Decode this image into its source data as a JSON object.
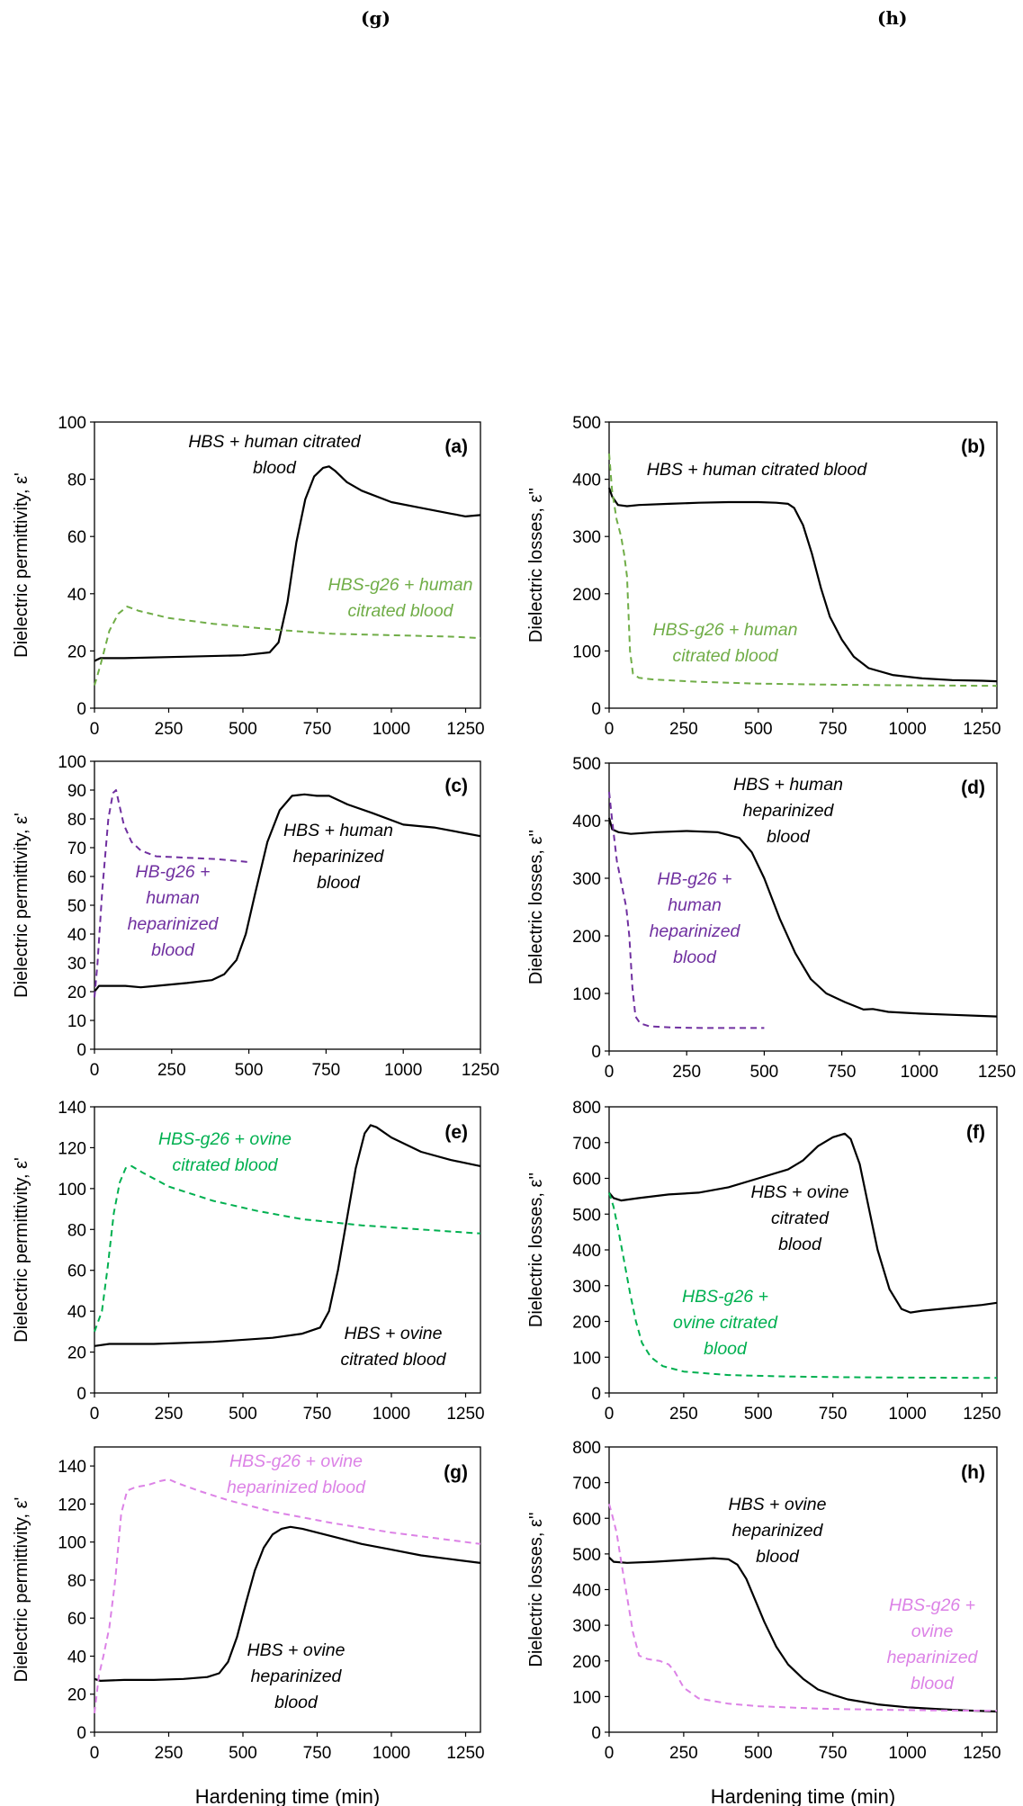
{
  "header": {
    "left_label": "(g)",
    "right_label": "(h)"
  },
  "chart_data": [
    {
      "type": "line",
      "panel": "(a)",
      "grid": false,
      "legend": "none",
      "ylabel": "Dielectric permittivity, ε'",
      "xlabel": "",
      "xlim": [
        0,
        1300
      ],
      "ylim": [
        0,
        100
      ],
      "xticks": [
        0,
        250,
        500,
        750,
        1000,
        1250
      ],
      "yticks": [
        0,
        20,
        40,
        60,
        80,
        100
      ],
      "series": [
        {
          "name": "HBS + human citrated blood",
          "color": "#000000",
          "dashed": false,
          "x": [
            0,
            20,
            100,
            300,
            500,
            590,
            620,
            650,
            680,
            710,
            740,
            770,
            790,
            810,
            850,
            900,
            1000,
            1100,
            1200,
            1250,
            1300
          ],
          "y": [
            16.5,
            17.5,
            17.5,
            18,
            18.5,
            19.5,
            23,
            37,
            58,
            73,
            81,
            84,
            84.5,
            83,
            79,
            76,
            72,
            70,
            68,
            67,
            67.5
          ]
        },
        {
          "name": "HBS-g26 + human citrated blood",
          "color": "#70ad47",
          "dashed": true,
          "x": [
            0,
            20,
            50,
            80,
            110,
            150,
            250,
            400,
            600,
            800,
            1000,
            1200,
            1300
          ],
          "y": [
            8,
            15,
            27,
            33,
            35.5,
            34,
            31.5,
            29.5,
            27.5,
            26,
            25.5,
            25,
            24.5
          ]
        }
      ],
      "annotations": [
        {
          "text": [
            "HBS + human citrated",
            "blood"
          ],
          "color": "#000000"
        },
        {
          "text": [
            "HBS-g26 + human",
            "citrated blood"
          ],
          "color": "#70ad47"
        }
      ]
    },
    {
      "type": "line",
      "panel": "(b)",
      "grid": false,
      "legend": "none",
      "ylabel": "Dielectric losses, ε''",
      "xlabel": "",
      "xlim": [
        0,
        1300
      ],
      "ylim": [
        0,
        500
      ],
      "xticks": [
        0,
        250,
        500,
        750,
        1000,
        1250
      ],
      "yticks": [
        0,
        100,
        200,
        300,
        400,
        500
      ],
      "series": [
        {
          "name": "HBS + human citrated blood",
          "color": "#000000",
          "dashed": false,
          "x": [
            0,
            10,
            30,
            60,
            100,
            200,
            300,
            400,
            500,
            560,
            600,
            620,
            650,
            680,
            710,
            740,
            780,
            820,
            870,
            950,
            1050,
            1150,
            1250,
            1300
          ],
          "y": [
            385,
            370,
            355,
            353,
            355,
            357,
            359,
            360,
            360,
            359,
            357,
            350,
            320,
            270,
            210,
            160,
            120,
            90,
            70,
            58,
            52,
            49,
            48,
            47
          ]
        },
        {
          "name": "HBS-g26 + human citrated blood",
          "color": "#70ad47",
          "dashed": true,
          "x": [
            0,
            10,
            25,
            40,
            50,
            60,
            70,
            80,
            100,
            150,
            300,
            500,
            750,
            1000,
            1300
          ],
          "y": [
            445,
            380,
            330,
            300,
            270,
            230,
            100,
            60,
            53,
            50,
            46,
            43,
            41,
            40,
            39
          ]
        }
      ],
      "annotations": [
        {
          "text": [
            "HBS + human citrated blood"
          ],
          "color": "#000000"
        },
        {
          "text": [
            "HBS-g26 + human",
            "citrated blood"
          ],
          "color": "#70ad47"
        }
      ]
    },
    {
      "type": "line",
      "panel": "(c)",
      "grid": false,
      "legend": "none",
      "ylabel": "Dielectric permittivity, ε'",
      "xlabel": "",
      "xlim": [
        0,
        1250
      ],
      "ylim": [
        0,
        100
      ],
      "xticks": [
        0,
        250,
        500,
        750,
        1000,
        1250
      ],
      "yticks": [
        0,
        10,
        20,
        30,
        40,
        50,
        60,
        70,
        80,
        90,
        100
      ],
      "series": [
        {
          "name": "HBS + human heparinized blood",
          "color": "#000000",
          "dashed": false,
          "x": [
            0,
            15,
            50,
            100,
            150,
            200,
            300,
            380,
            420,
            460,
            490,
            520,
            560,
            600,
            640,
            680,
            720,
            760,
            820,
            900,
            1000,
            1100,
            1200,
            1250
          ],
          "y": [
            20,
            22,
            22,
            22,
            21.5,
            22,
            23,
            24,
            26,
            31,
            40,
            54,
            72,
            83,
            88,
            88.5,
            88,
            88,
            85,
            82,
            78,
            77,
            75,
            74
          ]
        },
        {
          "name": "HB-g26 + human heparinized blood",
          "color": "#7030a0",
          "dashed": true,
          "x": [
            0,
            10,
            25,
            45,
            60,
            70,
            80,
            95,
            120,
            150,
            200,
            300,
            400,
            500
          ],
          "y": [
            18,
            30,
            55,
            80,
            89,
            90,
            85,
            78,
            72,
            69,
            67,
            66.5,
            66,
            65
          ]
        }
      ],
      "annotations": [
        {
          "text": [
            "HBS + human",
            "heparinized",
            "blood"
          ],
          "color": "#000000"
        },
        {
          "text": [
            "HB-g26 +",
            "human",
            "heparinized",
            "blood"
          ],
          "color": "#7030a0"
        }
      ]
    },
    {
      "type": "line",
      "panel": "(d)",
      "grid": false,
      "legend": "none",
      "ylabel": "Dielectric losses, ε''",
      "xlabel": "",
      "xlim": [
        0,
        1250
      ],
      "ylim": [
        0,
        500
      ],
      "xticks": [
        0,
        250,
        500,
        750,
        1000,
        1250
      ],
      "yticks": [
        0,
        100,
        200,
        300,
        400,
        500
      ],
      "series": [
        {
          "name": "HBS + human heparinized blood",
          "color": "#000000",
          "dashed": false,
          "x": [
            0,
            10,
            30,
            70,
            150,
            250,
            350,
            420,
            460,
            500,
            550,
            600,
            650,
            700,
            760,
            820,
            850,
            900,
            1000,
            1100,
            1200,
            1250
          ],
          "y": [
            405,
            385,
            380,
            377,
            380,
            382,
            380,
            370,
            345,
            300,
            230,
            170,
            125,
            100,
            85,
            72,
            73,
            68,
            65,
            63,
            61,
            60
          ]
        },
        {
          "name": "HB-g26 + human heparinized blood",
          "color": "#7030a0",
          "dashed": true,
          "x": [
            0,
            10,
            25,
            40,
            55,
            65,
            75,
            85,
            100,
            130,
            200,
            300,
            500
          ],
          "y": [
            450,
            400,
            330,
            290,
            250,
            200,
            110,
            60,
            48,
            43,
            41,
            40,
            40
          ]
        }
      ],
      "annotations": [
        {
          "text": [
            "HBS + human",
            "heparinized",
            "blood"
          ],
          "color": "#000000"
        },
        {
          "text": [
            "HB-g26 +",
            "human",
            "heparinized",
            "blood"
          ],
          "color": "#7030a0"
        }
      ]
    },
    {
      "type": "line",
      "panel": "(e)",
      "grid": false,
      "legend": "none",
      "ylabel": "Dielectric permittivity, ε'",
      "xlabel": "",
      "xlim": [
        0,
        1300
      ],
      "ylim": [
        0,
        140
      ],
      "xticks": [
        0,
        250,
        500,
        750,
        1000,
        1250
      ],
      "yticks": [
        0,
        20,
        40,
        60,
        80,
        100,
        120,
        140
      ],
      "series": [
        {
          "name": "HBS + ovine citrated blood",
          "color": "#000000",
          "dashed": false,
          "x": [
            0,
            50,
            200,
            400,
            600,
            700,
            760,
            790,
            820,
            850,
            880,
            910,
            930,
            950,
            1000,
            1100,
            1200,
            1300
          ],
          "y": [
            23,
            24,
            24,
            25,
            27,
            29,
            32,
            40,
            60,
            85,
            110,
            127,
            131,
            130,
            125,
            118,
            114,
            111
          ]
        },
        {
          "name": "HBS-g26 + ovine citrated blood",
          "color": "#00b050",
          "dashed": true,
          "x": [
            0,
            25,
            45,
            65,
            85,
            105,
            125,
            160,
            250,
            400,
            550,
            700,
            900,
            1100,
            1300
          ],
          "y": [
            30,
            40,
            62,
            88,
            103,
            110,
            111,
            108,
            101,
            94,
            89,
            85,
            82,
            80,
            78
          ]
        }
      ],
      "annotations": [
        {
          "text": [
            "HBS-g26 + ovine",
            "citrated blood"
          ],
          "color": "#00b050"
        },
        {
          "text": [
            "HBS + ovine",
            "citrated blood"
          ],
          "color": "#000000"
        }
      ]
    },
    {
      "type": "line",
      "panel": "(f)",
      "grid": false,
      "legend": "none",
      "ylabel": "Dielectric losses, ε''",
      "xlabel": "",
      "xlim": [
        0,
        1300
      ],
      "ylim": [
        0,
        800
      ],
      "xticks": [
        0,
        250,
        500,
        750,
        1000,
        1250
      ],
      "yticks": [
        0,
        100,
        200,
        300,
        400,
        500,
        600,
        700,
        800
      ],
      "series": [
        {
          "name": "HBS + ovine citrated blood",
          "color": "#000000",
          "dashed": false,
          "x": [
            0,
            15,
            40,
            100,
            200,
            300,
            400,
            500,
            600,
            650,
            700,
            750,
            790,
            810,
            840,
            870,
            900,
            940,
            980,
            1010,
            1050,
            1150,
            1250,
            1300
          ],
          "y": [
            560,
            545,
            538,
            545,
            555,
            560,
            575,
            600,
            625,
            650,
            690,
            715,
            725,
            710,
            640,
            520,
            400,
            290,
            235,
            225,
            230,
            238,
            246,
            252
          ]
        },
        {
          "name": "HBS-g26 + ovine citrated blood",
          "color": "#00b050",
          "dashed": true,
          "x": [
            0,
            15,
            30,
            50,
            70,
            90,
            110,
            140,
            180,
            250,
            400,
            600,
            800,
            1000,
            1300
          ],
          "y": [
            560,
            520,
            460,
            370,
            280,
            200,
            140,
            100,
            75,
            60,
            50,
            46,
            44,
            43,
            42
          ]
        }
      ],
      "annotations": [
        {
          "text": [
            "HBS + ovine",
            "citrated",
            "blood"
          ],
          "color": "#000000"
        },
        {
          "text": [
            "HBS-g26 +",
            "ovine citrated",
            "blood"
          ],
          "color": "#00b050"
        }
      ]
    },
    {
      "type": "line",
      "panel": "(g)",
      "grid": false,
      "legend": "none",
      "ylabel": "Dielectric permittivity, ε'",
      "xlabel": "Hardening time (min)",
      "xlim": [
        0,
        1300
      ],
      "ylim": [
        0,
        150
      ],
      "xticks": [
        0,
        250,
        500,
        750,
        1000,
        1250
      ],
      "yticks": [
        0,
        20,
        40,
        60,
        80,
        100,
        120,
        140
      ],
      "series": [
        {
          "name": "HBS + ovine heparinized blood",
          "color": "#000000",
          "dashed": false,
          "x": [
            0,
            20,
            100,
            200,
            300,
            380,
            420,
            450,
            480,
            510,
            540,
            570,
            600,
            630,
            660,
            700,
            800,
            900,
            1000,
            1100,
            1200,
            1300
          ],
          "y": [
            28,
            27,
            27.5,
            27.5,
            28,
            29,
            31,
            37,
            50,
            68,
            85,
            97,
            104,
            107,
            108,
            107,
            103,
            99,
            96,
            93,
            91,
            89
          ]
        },
        {
          "name": "HBS-g26 + ovine heparinized blood",
          "color": "#dc82e6",
          "dashed": true,
          "x": [
            0,
            15,
            30,
            50,
            70,
            90,
            110,
            140,
            180,
            220,
            250,
            280,
            350,
            450,
            600,
            800,
            1000,
            1150,
            1300
          ],
          "y": [
            10,
            30,
            40,
            55,
            80,
            115,
            127,
            129,
            130,
            132,
            133,
            131,
            127,
            122,
            116,
            110,
            105,
            102,
            99
          ]
        }
      ],
      "annotations": [
        {
          "text": [
            "HBS-g26 + ovine",
            "heparinized blood"
          ],
          "color": "#dc82e6"
        },
        {
          "text": [
            "HBS + ovine",
            "heparinized",
            "blood"
          ],
          "color": "#000000"
        }
      ]
    },
    {
      "type": "line",
      "panel": "(h)",
      "grid": false,
      "legend": "none",
      "ylabel": "Dielectric losses, ε''",
      "xlabel": "Hardening time (min)",
      "xlim": [
        0,
        1300
      ],
      "ylim": [
        0,
        800
      ],
      "xticks": [
        0,
        250,
        500,
        750,
        1000,
        1250
      ],
      "yticks": [
        0,
        100,
        200,
        300,
        400,
        500,
        600,
        700,
        800
      ],
      "series": [
        {
          "name": "HBS + ovine heparinized blood",
          "color": "#000000",
          "dashed": false,
          "x": [
            0,
            15,
            60,
            150,
            250,
            350,
            400,
            430,
            460,
            490,
            520,
            560,
            600,
            650,
            700,
            750,
            800,
            900,
            1000,
            1100,
            1200,
            1300
          ],
          "y": [
            490,
            478,
            475,
            478,
            483,
            488,
            485,
            470,
            430,
            370,
            310,
            240,
            190,
            150,
            120,
            105,
            92,
            78,
            70,
            65,
            61,
            58
          ]
        },
        {
          "name": "HBS-g26 + ovine heparinized blood",
          "color": "#dc82e6",
          "dashed": true,
          "x": [
            0,
            10,
            25,
            40,
            60,
            80,
            100,
            130,
            170,
            200,
            220,
            250,
            300,
            400,
            500,
            700,
            900,
            1100,
            1300
          ],
          "y": [
            640,
            610,
            560,
            480,
            380,
            280,
            215,
            205,
            200,
            190,
            170,
            125,
            95,
            80,
            73,
            66,
            63,
            61,
            60
          ]
        }
      ],
      "annotations": [
        {
          "text": [
            "HBS + ovine",
            "heparinized",
            "blood"
          ],
          "color": "#000000"
        },
        {
          "text": [
            "HBS-g26 +",
            "ovine",
            "heparinized",
            "blood"
          ],
          "color": "#dc82e6"
        }
      ]
    }
  ]
}
